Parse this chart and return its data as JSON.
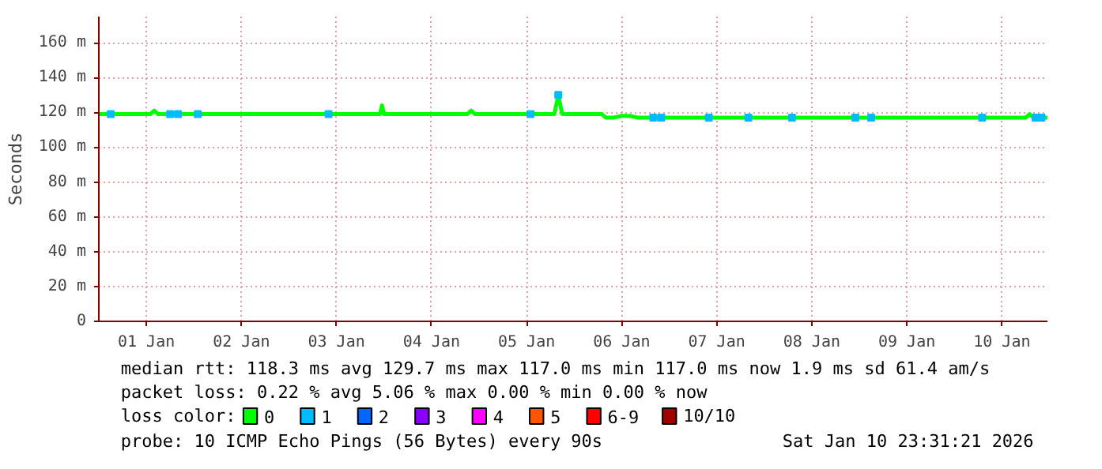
{
  "chart_data": {
    "type": "line",
    "ylabel": "Seconds",
    "legend_title": "loss color:",
    "legend": "bottom",
    "grid": true,
    "line_style": "solid",
    "xlim": [
      "2026-01-01T00:00",
      "2026-01-10T23:30"
    ],
    "xticks": [
      {
        "value": "2026-01-01T12:00",
        "label": "01 Jan"
      },
      {
        "value": "2026-01-02T12:00",
        "label": "02 Jan"
      },
      {
        "value": "2026-01-03T12:00",
        "label": "03 Jan"
      },
      {
        "value": "2026-01-04T12:00",
        "label": "04 Jan"
      },
      {
        "value": "2026-01-05T12:00",
        "label": "05 Jan"
      },
      {
        "value": "2026-01-06T12:00",
        "label": "06 Jan"
      },
      {
        "value": "2026-01-07T12:00",
        "label": "07 Jan"
      },
      {
        "value": "2026-01-08T12:00",
        "label": "08 Jan"
      },
      {
        "value": "2026-01-09T12:00",
        "label": "09 Jan"
      },
      {
        "value": "2026-01-10T12:00",
        "label": "10 Jan"
      }
    ],
    "ylim": [
      0,
      175
    ],
    "yticks": [
      0,
      {
        "value": 20,
        "label": "20 m"
      },
      {
        "value": 40,
        "label": "40 m"
      },
      {
        "value": 60,
        "label": "60 m"
      },
      {
        "value": 80,
        "label": "80 m"
      },
      {
        "value": 100,
        "label": "100 m"
      },
      {
        "value": 120,
        "label": "120 m"
      },
      {
        "value": 140,
        "label": "140 m"
      },
      {
        "value": 160,
        "label": "160 m"
      }
    ],
    "series": [
      {
        "name": "0",
        "color": "#00ff00",
        "x": [
          "2026-01-01T00:00",
          "2026-01-01T13:00",
          "2026-01-01T14:00",
          "2026-01-01T15:00",
          "2026-01-02T00:00",
          "2026-01-03T23:00",
          "2026-01-03T23:30",
          "2026-01-04T00:00",
          "2026-01-04T21:00",
          "2026-01-04T22:00",
          "2026-01-04T23:00",
          "2026-01-05T19:00",
          "2026-01-05T20:00",
          "2026-01-05T21:00",
          "2026-01-06T07:00",
          "2026-01-06T08:00",
          "2026-01-06T10:00",
          "2026-01-06T12:00",
          "2026-01-06T14:00",
          "2026-01-06T16:00",
          "2026-01-07T12:00",
          "2026-01-08T12:00",
          "2026-01-09T12:00",
          "2026-01-10T18:00",
          "2026-01-10T19:00",
          "2026-01-10T20:00",
          "2026-01-10T23:30"
        ],
        "values": [
          119,
          119,
          121,
          119,
          119,
          119,
          124,
          119,
          119,
          121,
          119,
          119,
          129.7,
          119,
          119,
          117,
          117,
          118,
          118,
          117,
          117,
          117,
          117,
          117,
          119,
          117,
          117
        ]
      },
      {
        "name": "1",
        "color": "#00bbff",
        "type": "scatter",
        "x": [
          "2026-01-01T03:00",
          "2026-01-01T18:00",
          "2026-01-01T20:00",
          "2026-01-02T01:00",
          "2026-01-03T10:00",
          "2026-01-05T13:00",
          "2026-01-05T20:00",
          "2026-01-06T20:00",
          "2026-01-06T22:00",
          "2026-01-07T10:00",
          "2026-01-07T20:00",
          "2026-01-08T07:00",
          "2026-01-08T23:00",
          "2026-01-09T03:00",
          "2026-01-10T07:00",
          "2026-01-10T20:30",
          "2026-01-10T22:00"
        ],
        "values": [
          119,
          119,
          119,
          119,
          119,
          119,
          130,
          117,
          117,
          117,
          117,
          117,
          117,
          117,
          117,
          117,
          117
        ]
      },
      {
        "name": "2",
        "color": "#0066ff",
        "type": "scatter"
      },
      {
        "name": "3",
        "color": "#8800ff",
        "type": "scatter"
      },
      {
        "name": "4",
        "color": "#ff00ff",
        "type": "scatter"
      },
      {
        "name": "5",
        "color": "#ff5500",
        "type": "scatter"
      },
      {
        "name": "6-9",
        "color": "#ff0000",
        "type": "scatter"
      },
      {
        "name": "10/10",
        "color": "#a10000",
        "type": "scatter"
      }
    ],
    "annotations": [
      "median rtt: 118.3 ms avg 129.7 ms max 117.0 ms min 117.0 ms now 1.9 ms sd 61.4 am/s",
      "packet loss: 0.22 % avg 5.06 % max 0.00 % min 0.00 % now",
      "probe: 10 ICMP Echo Pings (56 Bytes) every 90s",
      "Sat Jan 10 23:31:21 2026"
    ]
  }
}
